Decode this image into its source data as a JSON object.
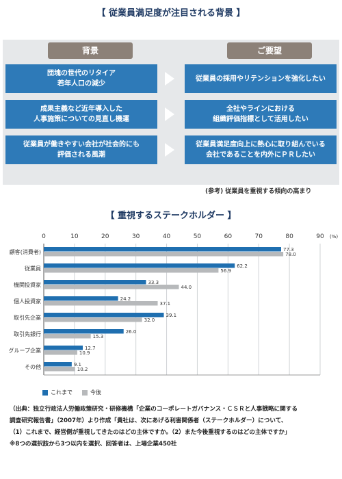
{
  "section1": {
    "title": "【 従業員満足度が注目される背景 】",
    "left_header": "背景",
    "right_header": "ご要望",
    "rows": [
      {
        "left_line1": "団塊の世代のリタイア",
        "left_line2": "若年人口の減少",
        "right_line1": "従業員の採用やリテンションを強化したい",
        "right_line2": ""
      },
      {
        "left_line1": "成果主義など近年導入した",
        "left_line2": "人事施策についての見直し機運",
        "right_line1": "全社やラインにおける",
        "right_line2": "組織評価指標として活用したい"
      },
      {
        "left_line1": "従業員が働きやすい会社が社会的にも",
        "left_line2": "評価される風潮",
        "right_line1": "従業員満足度向上に熱心に取り組んでいる",
        "right_line2": "会社であることを内外にＰＲしたい"
      }
    ],
    "note": "(参考) 従業員を重視する傾向の高まり"
  },
  "section2": {
    "title": "【 重視するステークホルダー 】"
  },
  "chart_data": {
    "type": "bar",
    "orientation": "horizontal",
    "categories": [
      "顧客(消費者)",
      "従業員",
      "機関投資家",
      "個人投資家",
      "取引先企業",
      "取引先銀行",
      "グループ企業",
      "その他"
    ],
    "series": [
      {
        "name": "これまで",
        "color": "#1f6fb0",
        "values": [
          77.3,
          62.2,
          33.3,
          24.2,
          39.1,
          26.0,
          12.7,
          9.1
        ]
      },
      {
        "name": "今後",
        "color": "#b7b9bb",
        "values": [
          78.0,
          56.9,
          44.0,
          37.1,
          32.0,
          15.3,
          10.9,
          10.2
        ]
      }
    ],
    "xlim": [
      0,
      90
    ],
    "xticks": [
      0,
      10,
      20,
      30,
      40,
      50,
      60,
      70,
      80,
      90
    ],
    "unit_label": "(%)",
    "grid": true,
    "legend_position": "bottom-left"
  },
  "source": {
    "line1": "（出典：独立行政法人労働政策研究・研修機構「企業のコーポレートガバナンス・ＣＳＲと人事戦略に関する",
    "line2": "調査研究報告書」（2007年）より作成「貴社は、次にあげる利害関係者（ステークホルダー）について、",
    "line3": "（1）これまで、経営側が重視してきたのはどの主体ですか。（2）また今後重視するのはどの主体ですか」",
    "line4": "※8つの選択肢から3つ以内を選択、回答者は、上場企業450社"
  }
}
